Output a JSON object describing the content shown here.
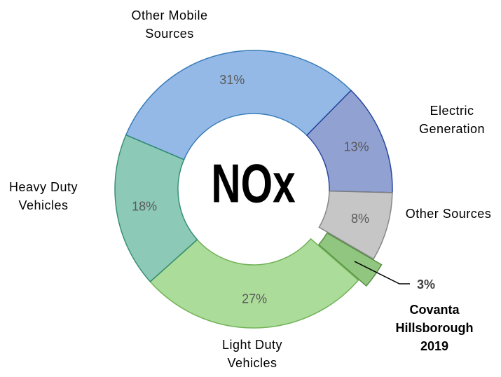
{
  "chart_data": {
    "type": "donut",
    "center_label": "NOx",
    "categories": [
      "Other Mobile Sources",
      "Electric Generation",
      "Other Sources",
      "Covanta Hillsborough 2019",
      "Light Duty Vehicles",
      "Heavy Duty Vehicles"
    ],
    "values": [
      31,
      13,
      8,
      3,
      27,
      18
    ],
    "value_labels": [
      "31%",
      "13%",
      "8%",
      "3%",
      "27%",
      "18%"
    ],
    "colors": [
      "#8fb6e6",
      "#8c9dd0",
      "#c4c4c4",
      "#8cc47a",
      "#a8db95",
      "#86c7b3"
    ],
    "edge_colors": [
      "#2e75b6",
      "#1f3f99",
      "#808080",
      "#4e8b3a",
      "#6aae4f",
      "#2e8b6f"
    ],
    "exploded": [
      false,
      false,
      false,
      true,
      false,
      false
    ]
  }
}
